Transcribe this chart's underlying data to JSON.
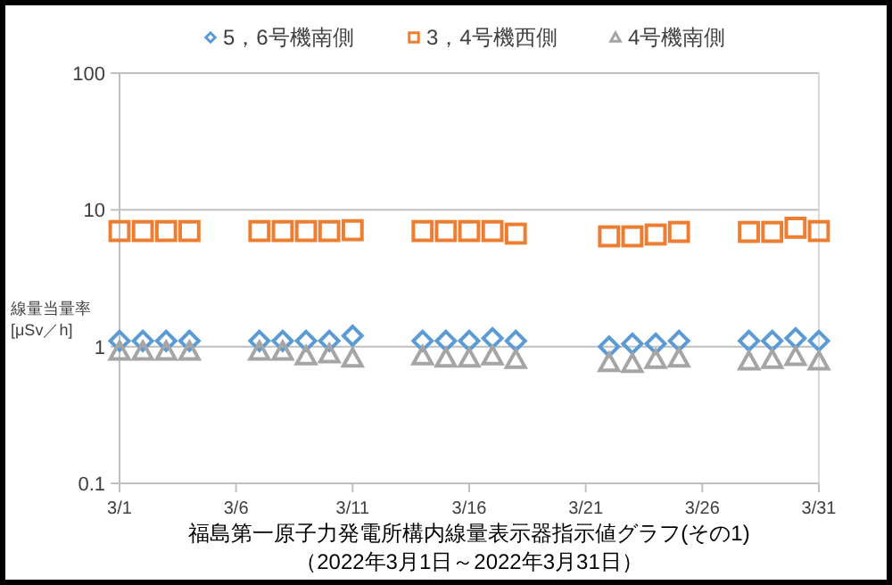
{
  "chart_data": {
    "type": "scatter",
    "title": "福島第一原子力発電所構内線量表示器指示値グラフ(その1)",
    "subtitle": "（2022年3月1日～2022年3月31日）",
    "ylabel": "線量当量率\n[μSv／h]",
    "x": [
      "--03-01",
      "--03-02",
      "--03-03",
      "--03-04",
      "--03-07",
      "--03-08",
      "--03-09",
      "--03-10",
      "--03-11",
      "--03-14",
      "--03-15",
      "--03-16",
      "--03-17",
      "--03-18",
      "--03-22",
      "--03-23",
      "--03-24",
      "--03-25",
      "--03-28",
      "--03-29",
      "--03-30",
      "--03-31"
    ],
    "series": [
      {
        "name": "5，6号機南側",
        "color": "#5b9bd5",
        "marker": "diamond",
        "values": [
          1.1,
          1.1,
          1.1,
          1.1,
          1.1,
          1.1,
          1.1,
          1.1,
          1.2,
          1.1,
          1.1,
          1.1,
          1.15,
          1.1,
          1.0,
          1.05,
          1.05,
          1.1,
          1.1,
          1.1,
          1.15,
          1.1
        ]
      },
      {
        "name": "3，4号機西側",
        "color": "#ed7d31",
        "marker": "square",
        "values": [
          7.0,
          7.0,
          7.0,
          7.0,
          7.0,
          7.0,
          7.0,
          7.0,
          7.1,
          7.0,
          7.0,
          7.0,
          7.0,
          6.7,
          6.4,
          6.4,
          6.6,
          6.9,
          6.9,
          6.9,
          7.4,
          7.0
        ]
      },
      {
        "name": "4号機南側",
        "color": "#a5a5a5",
        "marker": "triangle",
        "values": [
          0.92,
          0.92,
          0.92,
          0.92,
          0.92,
          0.92,
          0.85,
          0.88,
          0.82,
          0.85,
          0.82,
          0.82,
          0.85,
          0.8,
          0.76,
          0.75,
          0.8,
          0.82,
          0.78,
          0.8,
          0.84,
          0.78
        ]
      }
    ],
    "log": "y",
    "ylim": [
      0.1,
      100
    ],
    "yticks": [
      0.1,
      1,
      10,
      100
    ],
    "grid": "y",
    "legend": "top",
    "xlim": [
      "--03-01",
      "--03-31"
    ],
    "xticks": [
      {
        "value": "--03-01",
        "label": "3/1"
      },
      {
        "value": "--03-06",
        "label": "3/6"
      },
      {
        "value": "--03-11",
        "label": "3/11"
      },
      {
        "value": "--03-16",
        "label": "3/16"
      },
      {
        "value": "--03-21",
        "label": "3/21"
      },
      {
        "value": "--03-26",
        "label": "3/26"
      },
      {
        "value": "--03-31",
        "label": "3/31"
      }
    ]
  }
}
